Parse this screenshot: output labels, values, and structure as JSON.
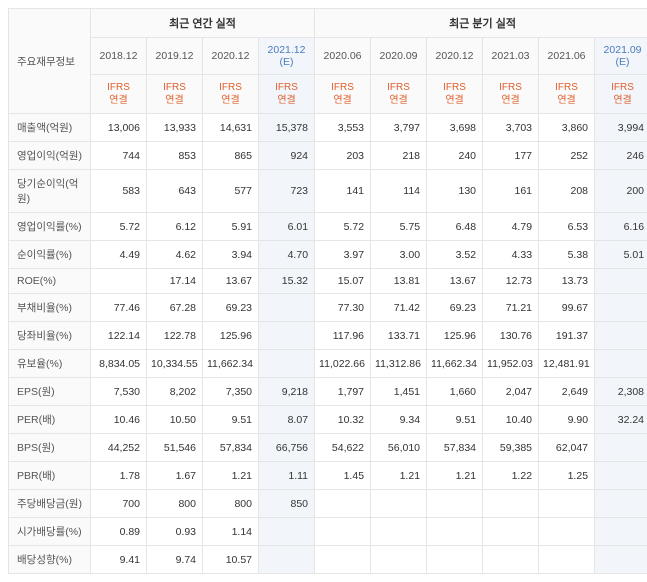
{
  "header": {
    "metric_label": "주요재무정보",
    "annual_label": "최근 연간 실적",
    "quarterly_label": "최근 분기 실적",
    "ifrs_label": "IFRS\n연결",
    "annual_periods": [
      "2018.12",
      "2019.12",
      "2020.12",
      "2021.12 (E)"
    ],
    "quarterly_periods": [
      "2020.06",
      "2020.09",
      "2020.12",
      "2021.03",
      "2021.06",
      "2021.09 (E)"
    ],
    "annual_est_idx": 3,
    "quarterly_est_idx": 5
  },
  "rows": [
    {
      "label": "매출액(억원)",
      "annual": [
        "13,006",
        "13,933",
        "14,631",
        "15,378"
      ],
      "quarterly": [
        "3,553",
        "3,797",
        "3,698",
        "3,703",
        "3,860",
        "3,994"
      ]
    },
    {
      "label": "영업이익(억원)",
      "annual": [
        "744",
        "853",
        "865",
        "924"
      ],
      "quarterly": [
        "203",
        "218",
        "240",
        "177",
        "252",
        "246"
      ]
    },
    {
      "label": "당기순이익(억원)",
      "annual": [
        "583",
        "643",
        "577",
        "723"
      ],
      "quarterly": [
        "141",
        "114",
        "130",
        "161",
        "208",
        "200"
      ]
    },
    {
      "label": "영업이익률(%)",
      "annual": [
        "5.72",
        "6.12",
        "5.91",
        "6.01"
      ],
      "quarterly": [
        "5.72",
        "5.75",
        "6.48",
        "4.79",
        "6.53",
        "6.16"
      ]
    },
    {
      "label": "순이익률(%)",
      "annual": [
        "4.49",
        "4.62",
        "3.94",
        "4.70"
      ],
      "quarterly": [
        "3.97",
        "3.00",
        "3.52",
        "4.33",
        "5.38",
        "5.01"
      ]
    },
    {
      "label": "ROE(%)",
      "annual": [
        "",
        "17.14",
        "13.67",
        "15.32"
      ],
      "quarterly": [
        "15.07",
        "13.81",
        "13.67",
        "12.73",
        "13.73",
        ""
      ]
    },
    {
      "label": "부채비율(%)",
      "annual": [
        "77.46",
        "67.28",
        "69.23",
        ""
      ],
      "quarterly": [
        "77.30",
        "71.42",
        "69.23",
        "71.21",
        "99.67",
        ""
      ]
    },
    {
      "label": "당좌비율(%)",
      "annual": [
        "122.14",
        "122.78",
        "125.96",
        ""
      ],
      "quarterly": [
        "117.96",
        "133.71",
        "125.96",
        "130.76",
        "191.37",
        ""
      ]
    },
    {
      "label": "유보율(%)",
      "annual": [
        "8,834.05",
        "10,334.55",
        "11,662.34",
        ""
      ],
      "quarterly": [
        "11,022.66",
        "11,312.86",
        "11,662.34",
        "11,952.03",
        "12,481.91",
        ""
      ]
    },
    {
      "label": "EPS(원)",
      "annual": [
        "7,530",
        "8,202",
        "7,350",
        "9,218"
      ],
      "quarterly": [
        "1,797",
        "1,451",
        "1,660",
        "2,047",
        "2,649",
        "2,308"
      ]
    },
    {
      "label": "PER(배)",
      "annual": [
        "10.46",
        "10.50",
        "9.51",
        "8.07"
      ],
      "quarterly": [
        "10.32",
        "9.34",
        "9.51",
        "10.40",
        "9.90",
        "32.24"
      ]
    },
    {
      "label": "BPS(원)",
      "annual": [
        "44,252",
        "51,546",
        "57,834",
        "66,756"
      ],
      "quarterly": [
        "54,622",
        "56,010",
        "57,834",
        "59,385",
        "62,047",
        ""
      ]
    },
    {
      "label": "PBR(배)",
      "annual": [
        "1.78",
        "1.67",
        "1.21",
        "1.11"
      ],
      "quarterly": [
        "1.45",
        "1.21",
        "1.21",
        "1.22",
        "1.25",
        ""
      ]
    },
    {
      "label": "주당배당금(원)",
      "annual": [
        "700",
        "800",
        "800",
        "850"
      ],
      "quarterly": [
        "",
        "",
        "",
        "",
        "",
        ""
      ]
    },
    {
      "label": "시가배당률(%)",
      "annual": [
        "0.89",
        "0.93",
        "1.14",
        ""
      ],
      "quarterly": [
        "",
        "",
        "",
        "",
        "",
        ""
      ]
    },
    {
      "label": "배당성향(%)",
      "annual": [
        "9.41",
        "9.74",
        "10.57",
        ""
      ],
      "quarterly": [
        "",
        "",
        "",
        "",
        "",
        ""
      ]
    }
  ]
}
